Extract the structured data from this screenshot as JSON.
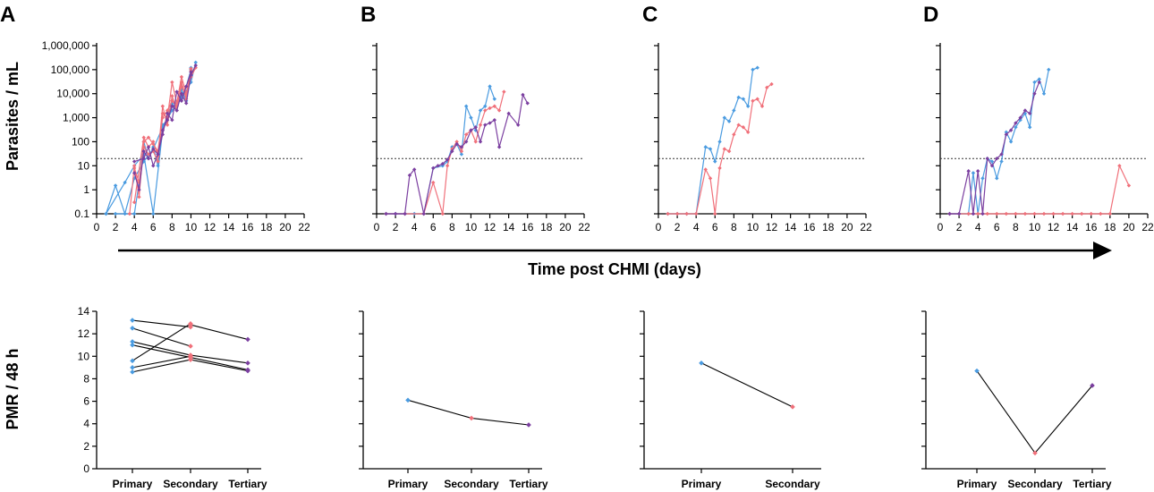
{
  "time_axis_label": "Time post CHMI (days)",
  "colors": {
    "primary": "#4a9be0",
    "secondary": "#f0707a",
    "tertiary": "#7b3fa0"
  },
  "chart_data": [
    {
      "panel": "A",
      "type": "line",
      "yscale": "log",
      "ylabel": "Parasites / mL",
      "xlabel": "Time post CHMI (days)",
      "xlim": [
        0,
        22
      ],
      "ylim": [
        0.1,
        1000000
      ],
      "threshold": 20,
      "x_ticks": [
        "0",
        "2",
        "4",
        "6",
        "8",
        "10",
        "12",
        "14",
        "16",
        "18",
        "20",
        "22"
      ],
      "y_ticks": [
        "0.1",
        "1",
        "10",
        "100",
        "1,000",
        "10,000",
        "100,000",
        "1,000,000"
      ],
      "series": [
        {
          "name": "Primary",
          "x": [
            1,
            2,
            3,
            4,
            5,
            6,
            7,
            8,
            9,
            10,
            10.5
          ],
          "y": [
            0.1,
            1.5,
            0.1,
            3,
            15,
            50,
            400,
            2000,
            6000,
            30000,
            200000
          ]
        },
        {
          "name": "Primary",
          "x": [
            1,
            3,
            4,
            5,
            6,
            7,
            7.5,
            8,
            8.5,
            9,
            9.5,
            10
          ],
          "y": [
            0.1,
            2,
            10,
            30,
            0.1,
            300,
            1000,
            5000,
            3000,
            8000,
            20000,
            100000
          ]
        },
        {
          "name": "Primary",
          "x": [
            2,
            4,
            4.5,
            5,
            5.5,
            6,
            6.5,
            7,
            7.5,
            8,
            8.5,
            9,
            9.5,
            10
          ],
          "y": [
            0.1,
            0.1,
            2,
            100,
            20,
            60,
            10,
            500,
            800,
            4000,
            2000,
            15000,
            5000,
            120000
          ]
        },
        {
          "name": "Secondary",
          "x": [
            3.5,
            4,
            4.5,
            5,
            5.5,
            6,
            6.5,
            7,
            7.5,
            8,
            8.5,
            9,
            9.5,
            10,
            10.5
          ],
          "y": [
            0.1,
            10,
            0.5,
            100,
            150,
            80,
            40,
            1000,
            2000,
            5000,
            3000,
            20000,
            8000,
            50000,
            120000
          ]
        },
        {
          "name": "Secondary",
          "x": [
            4,
            4.5,
            5,
            5.5,
            6,
            6.5,
            7,
            7.5,
            8,
            8.5,
            9,
            9.5,
            10
          ],
          "y": [
            8,
            2,
            60,
            30,
            40,
            15,
            1500,
            1000,
            30000,
            4000,
            50000,
            10000,
            90000
          ]
        },
        {
          "name": "Secondary",
          "x": [
            4,
            5,
            5.5,
            6,
            6.5,
            7,
            7.5,
            8,
            8.5,
            9,
            9.5,
            10
          ],
          "y": [
            0.3,
            150,
            60,
            100,
            25,
            3000,
            500,
            8000,
            2000,
            30000,
            6000,
            110000
          ]
        },
        {
          "name": "Tertiary",
          "x": [
            4,
            5,
            5.5,
            6,
            6.5,
            7,
            7.5,
            8,
            8.5,
            9,
            9.5,
            10,
            10.5
          ],
          "y": [
            15,
            20,
            60,
            10,
            30,
            300,
            800,
            3000,
            2000,
            10000,
            4000,
            60000,
            150000
          ]
        },
        {
          "name": "Tertiary",
          "x": [
            4,
            4.5,
            5,
            5.5,
            6,
            6.5,
            7,
            7.5,
            8,
            8.5,
            9,
            9.5,
            10
          ],
          "y": [
            5,
            1,
            40,
            20,
            50,
            30,
            200,
            1500,
            800,
            12000,
            5000,
            20000,
            80000
          ]
        }
      ]
    },
    {
      "panel": "B",
      "type": "line",
      "yscale": "log",
      "xlim": [
        0,
        22
      ],
      "ylim": [
        0.1,
        1000000
      ],
      "threshold": 20,
      "x_ticks": [
        "0",
        "2",
        "4",
        "6",
        "8",
        "10",
        "12",
        "14",
        "16",
        "18",
        "20",
        "22"
      ],
      "series": [
        {
          "name": "Primary",
          "x": [
            1,
            2,
            3,
            4,
            5,
            6,
            7,
            7.5,
            8,
            8.5,
            9,
            9.5,
            10,
            10.5,
            11,
            11.5,
            12,
            12.5
          ],
          "y": [
            0.1,
            0.1,
            0.1,
            0.1,
            0.1,
            8,
            10,
            15,
            60,
            80,
            30,
            3000,
            1000,
            300,
            2000,
            3000,
            20000,
            6000
          ]
        },
        {
          "name": "Secondary",
          "x": [
            1,
            3,
            5,
            6,
            7,
            7.5,
            8,
            8.5,
            9,
            9.5,
            10,
            10.5,
            11,
            11.5,
            12,
            12.5,
            13,
            13.5
          ],
          "y": [
            0.1,
            0.1,
            0.1,
            2,
            0.1,
            10,
            50,
            100,
            40,
            200,
            300,
            100,
            500,
            2000,
            2500,
            3000,
            2000,
            12000
          ]
        },
        {
          "name": "Tertiary",
          "x": [
            1,
            2,
            3,
            3.5,
            4,
            5,
            6,
            6.5,
            7,
            7.5,
            8,
            8.5,
            9,
            9.5,
            10,
            10.5,
            11,
            11.5,
            12,
            12.5,
            13,
            14,
            15,
            15.5,
            16
          ],
          "y": [
            0.1,
            0.1,
            0.1,
            4,
            7,
            0.1,
            8,
            10,
            12,
            18,
            40,
            80,
            60,
            100,
            300,
            400,
            100,
            500,
            600,
            800,
            60,
            1500,
            500,
            9000,
            4000
          ]
        }
      ]
    },
    {
      "panel": "C",
      "type": "line",
      "yscale": "log",
      "xlim": [
        0,
        22
      ],
      "ylim": [
        0.1,
        1000000
      ],
      "threshold": 20,
      "x_ticks": [
        "0",
        "2",
        "4",
        "6",
        "8",
        "10",
        "12",
        "14",
        "16",
        "18",
        "20",
        "22"
      ],
      "series": [
        {
          "name": "Primary",
          "x": [
            1,
            2,
            3,
            4,
            5,
            5.5,
            6,
            6.5,
            7,
            7.5,
            8,
            8.5,
            9,
            9.5,
            10,
            10.5
          ],
          "y": [
            0.1,
            0.1,
            0.1,
            0.1,
            60,
            50,
            15,
            100,
            1000,
            700,
            2000,
            7000,
            6000,
            3000,
            100000,
            120000
          ]
        },
        {
          "name": "Secondary",
          "x": [
            1,
            2,
            3,
            4,
            5,
            5.5,
            6,
            6.5,
            7,
            7.5,
            8,
            8.5,
            9,
            9.5,
            10,
            10.5,
            11,
            11.5,
            12
          ],
          "y": [
            0.1,
            0.1,
            0.1,
            0.1,
            7,
            3,
            0.1,
            8,
            50,
            40,
            200,
            500,
            400,
            250,
            5000,
            6000,
            3000,
            18000,
            25000
          ]
        }
      ]
    },
    {
      "panel": "D",
      "type": "line",
      "yscale": "log",
      "xlim": [
        0,
        22
      ],
      "ylim": [
        0.1,
        1000000
      ],
      "threshold": 20,
      "x_ticks": [
        "0",
        "2",
        "4",
        "6",
        "8",
        "10",
        "12",
        "14",
        "16",
        "18",
        "20",
        "22"
      ],
      "series": [
        {
          "name": "Primary",
          "x": [
            1,
            2,
            3,
            3.5,
            4,
            4.5,
            5,
            5.5,
            6,
            6.5,
            7,
            7.5,
            8,
            8.5,
            9,
            9.5,
            10,
            10.5,
            11,
            11.5
          ],
          "y": [
            0.1,
            0.1,
            0.1,
            5,
            0.1,
            3,
            20,
            15,
            3,
            15,
            250,
            100,
            400,
            800,
            1500,
            400,
            30000,
            40000,
            10000,
            100000
          ]
        },
        {
          "name": "Secondary",
          "x": [
            1,
            2,
            3,
            4,
            5,
            6,
            7,
            8,
            9,
            10,
            11,
            12,
            13,
            14,
            15,
            16,
            17,
            18,
            19,
            20
          ],
          "y": [
            0.1,
            0.1,
            0.1,
            0.1,
            0.1,
            0.1,
            0.1,
            0.1,
            0.1,
            0.1,
            0.1,
            0.1,
            0.1,
            0.1,
            0.1,
            0.1,
            0.1,
            0.1,
            10,
            1.5
          ]
        },
        {
          "name": "Tertiary",
          "x": [
            1,
            2,
            3,
            3.5,
            4,
            4.5,
            5,
            5.5,
            6,
            6.5,
            7,
            7.5,
            8,
            8.5,
            9,
            9.5,
            10,
            10.5
          ],
          "y": [
            0.1,
            0.1,
            6,
            0.1,
            6,
            0.1,
            20,
            10,
            20,
            30,
            200,
            300,
            600,
            1000,
            2000,
            1500,
            10000,
            30000
          ]
        }
      ]
    },
    {
      "panel": "A",
      "type": "scatter",
      "ylabel": "PMR / 48 h",
      "categories": [
        "Primary",
        "Secondary",
        "Tertiary"
      ],
      "ylim": [
        0,
        14
      ],
      "y_ticks": [
        "0",
        "2",
        "4",
        "6",
        "8",
        "10",
        "12",
        "14"
      ],
      "pairs": [
        {
          "from": 0,
          "to": 1,
          "y1": 13.2,
          "y2": 12.6
        },
        {
          "from": 0,
          "to": 1,
          "y1": 12.5,
          "y2": 10.9
        },
        {
          "from": 0,
          "to": 1,
          "y1": 11.3,
          "y2": 10.1
        },
        {
          "from": 0,
          "to": 1,
          "y1": 11.0,
          "y2": 9.9
        },
        {
          "from": 0,
          "to": 1,
          "y1": 9.6,
          "y2": 12.9
        },
        {
          "from": 0,
          "to": 1,
          "y1": 9.0,
          "y2": 10.0
        },
        {
          "from": 0,
          "to": 1,
          "y1": 8.6,
          "y2": 9.7
        },
        {
          "from": 1,
          "to": 2,
          "y1": 12.8,
          "y2": 11.5
        },
        {
          "from": 1,
          "to": 2,
          "y1": 10.1,
          "y2": 9.4
        },
        {
          "from": 1,
          "to": 2,
          "y1": 9.9,
          "y2": 8.8
        },
        {
          "from": 1,
          "to": 2,
          "y1": 9.7,
          "y2": 8.7
        }
      ]
    },
    {
      "panel": "B",
      "type": "line",
      "categories": [
        "Primary",
        "Secondary",
        "Tertiary"
      ],
      "ylim": [
        0,
        14
      ],
      "values": [
        6.1,
        4.5,
        3.9
      ]
    },
    {
      "panel": "C",
      "type": "line",
      "categories": [
        "Primary",
        "Secondary"
      ],
      "ylim": [
        0,
        14
      ],
      "values": [
        9.4,
        5.5
      ]
    },
    {
      "panel": "D",
      "type": "line",
      "categories": [
        "Primary",
        "Secondary",
        "Tertiary"
      ],
      "ylim": [
        0,
        14
      ],
      "values": [
        8.7,
        1.4,
        7.4
      ]
    }
  ]
}
